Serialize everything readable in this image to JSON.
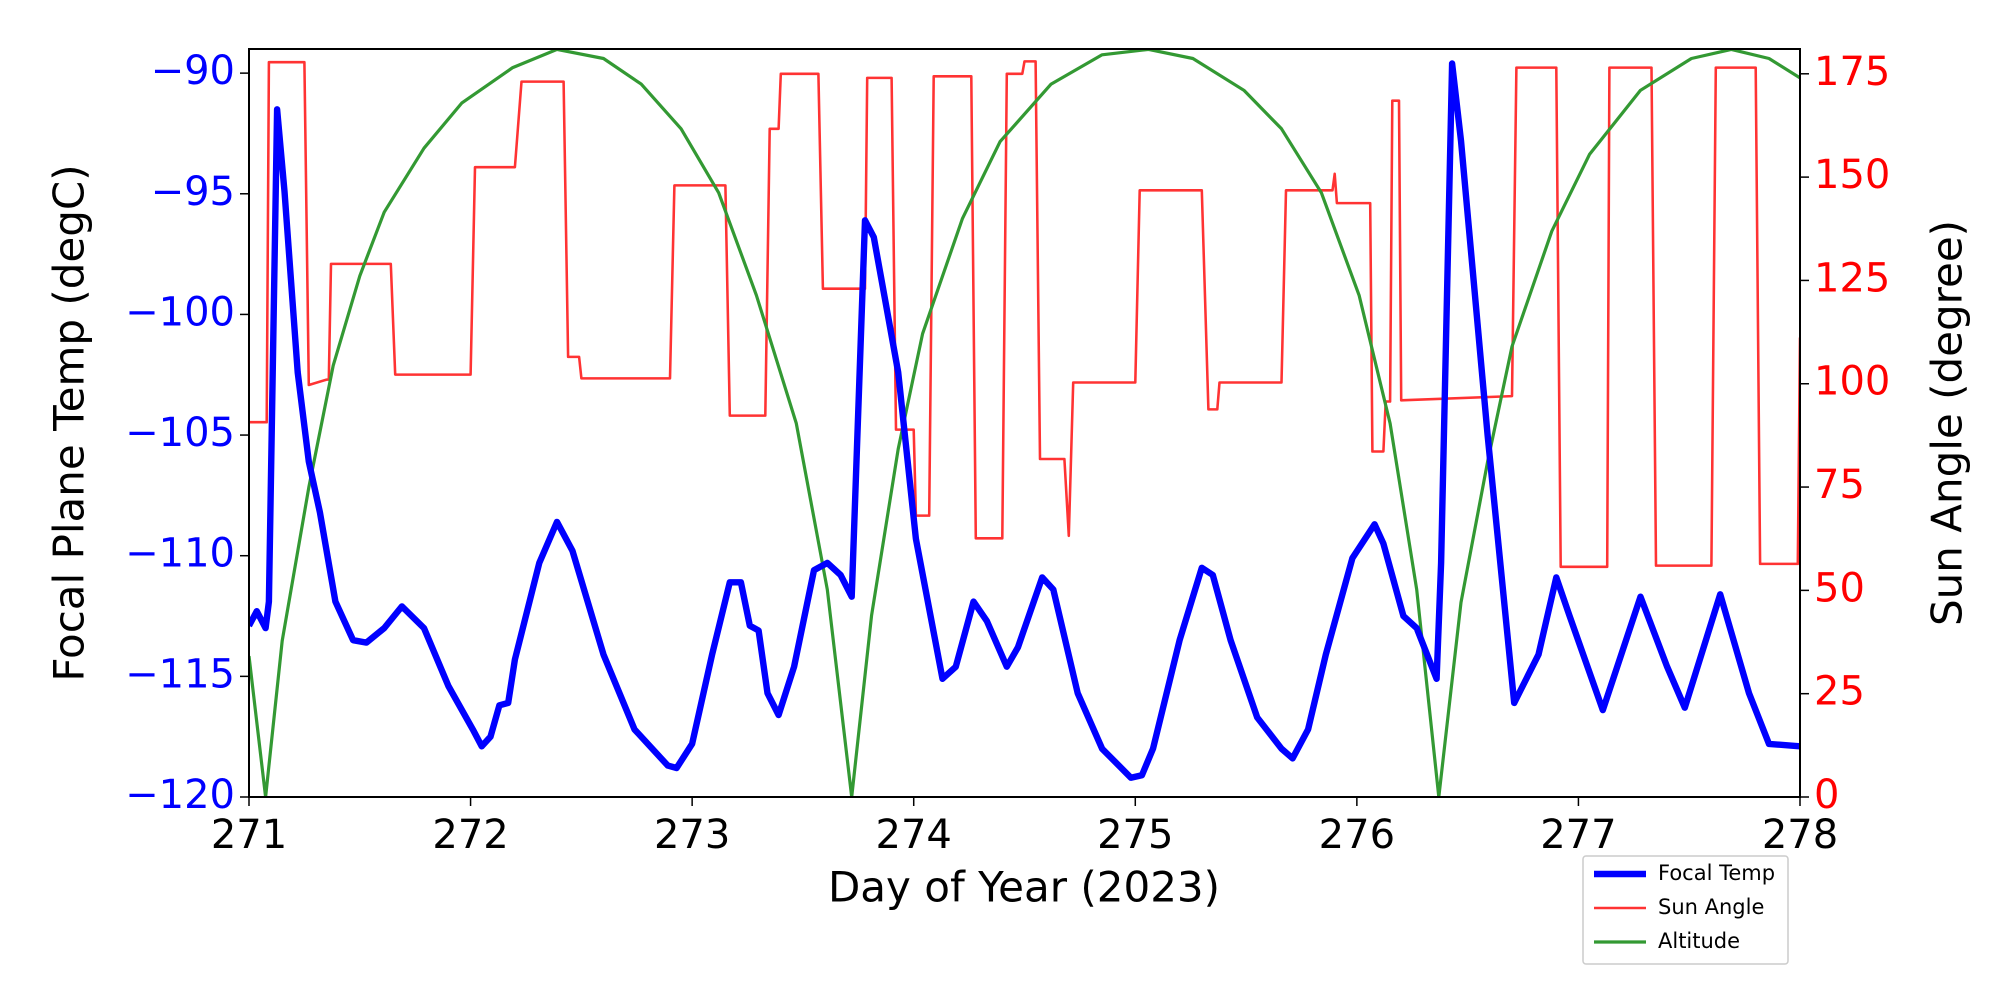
{
  "chart_data": {
    "type": "line",
    "xlabel": "Day of Year (2023)",
    "ylabel": "Focal Plane Temp (degC)",
    "y2label": "Sun Angle (degree)",
    "xlim": [
      271,
      278
    ],
    "xticks": [
      271,
      272,
      273,
      274,
      275,
      276,
      277,
      278
    ],
    "ylim": [
      -120,
      -89
    ],
    "yticks": [
      {
        "value": -120,
        "label": "−120"
      },
      {
        "value": -115,
        "label": "−115"
      },
      {
        "value": -110,
        "label": "−110"
      },
      {
        "value": -105,
        "label": "−105"
      },
      {
        "value": -100,
        "label": "−100"
      },
      {
        "value": -95,
        "label": "−95"
      },
      {
        "value": -90,
        "label": "−90"
      }
    ],
    "y2lim": [
      0,
      181
    ],
    "y2ticks": [
      0,
      25,
      50,
      75,
      100,
      125,
      150,
      175
    ],
    "y_tick_color": "#0000ff",
    "y2_tick_color": "#ff0000",
    "legend": "lower right",
    "series": [
      {
        "name": "Focal Temp",
        "color": "#0000ff",
        "line_width": 5,
        "axis": "y",
        "x": [
          271.0,
          271.035,
          271.075,
          271.09,
          271.127,
          271.16,
          271.22,
          271.27,
          271.32,
          271.39,
          271.47,
          271.53,
          271.61,
          271.69,
          271.79,
          271.9,
          272.01,
          272.05,
          272.09,
          272.13,
          272.17,
          272.2,
          272.31,
          272.39,
          272.46,
          272.6,
          272.74,
          272.89,
          272.93,
          273.0,
          273.09,
          273.17,
          273.22,
          273.26,
          273.3,
          273.34,
          273.39,
          273.46,
          273.55,
          273.61,
          273.67,
          273.72,
          273.78,
          273.82,
          273.93,
          274.01,
          274.13,
          274.19,
          274.27,
          274.33,
          274.42,
          274.47,
          274.58,
          274.63,
          274.74,
          274.85,
          274.98,
          275.03,
          275.08,
          275.2,
          275.3,
          275.35,
          275.43,
          275.55,
          275.66,
          275.71,
          275.78,
          275.86,
          275.98,
          276.08,
          276.12,
          276.21,
          276.27,
          276.36,
          276.38,
          276.43,
          276.47,
          276.59,
          276.71,
          276.82,
          276.9,
          276.96,
          277.11,
          277.28,
          277.4,
          277.48,
          277.64,
          277.77,
          277.86,
          278.0
        ],
        "values": [
          -112.9,
          -112.3,
          -113.0,
          -111.9,
          -91.5,
          -94.9,
          -102.4,
          -106.1,
          -108.2,
          -111.9,
          -113.5,
          -113.6,
          -113.0,
          -112.1,
          -113.0,
          -115.4,
          -117.2,
          -117.9,
          -117.5,
          -116.2,
          -116.1,
          -114.3,
          -110.3,
          -108.6,
          -109.8,
          -114.1,
          -117.2,
          -118.7,
          -118.8,
          -117.8,
          -114.1,
          -111.1,
          -111.1,
          -112.9,
          -113.1,
          -115.7,
          -116.6,
          -114.6,
          -110.6,
          -110.3,
          -110.8,
          -111.7,
          -96.1,
          -96.8,
          -102.4,
          -109.3,
          -115.1,
          -114.6,
          -111.9,
          -112.7,
          -114.6,
          -113.8,
          -110.9,
          -111.4,
          -115.7,
          -118.0,
          -119.2,
          -119.1,
          -118.0,
          -113.5,
          -110.5,
          -110.8,
          -113.5,
          -116.7,
          -118.0,
          -118.4,
          -117.2,
          -114.1,
          -110.1,
          -108.7,
          -109.5,
          -112.5,
          -113.0,
          -115.1,
          -110.3,
          -89.6,
          -92.8,
          -105.0,
          -116.1,
          -114.1,
          -110.9,
          -112.5,
          -116.4,
          -111.7,
          -114.6,
          -116.3,
          -111.6,
          -115.7,
          -117.8,
          -117.9
        ]
      },
      {
        "name": "Sun Angle",
        "color": "#ff3333",
        "line_width": 2,
        "axis": "y2",
        "x": [
          271.0,
          271.08,
          271.09,
          271.25,
          271.27,
          271.35,
          271.36,
          271.37,
          271.64,
          271.66,
          272.0,
          272.02,
          272.2,
          272.23,
          272.42,
          272.44,
          272.49,
          272.5,
          272.9,
          272.92,
          273.15,
          273.17,
          273.33,
          273.35,
          273.39,
          273.4,
          273.57,
          273.59,
          273.78,
          273.79,
          273.9,
          273.92,
          274.0,
          274.01,
          274.07,
          274.09,
          274.26,
          274.28,
          274.4,
          274.42,
          274.49,
          274.5,
          274.55,
          274.57,
          274.68,
          274.7,
          274.72,
          275.0,
          275.02,
          275.3,
          275.33,
          275.37,
          275.38,
          275.66,
          275.68,
          275.89,
          275.9,
          275.91,
          276.06,
          276.07,
          276.12,
          276.13,
          276.15,
          276.16,
          276.19,
          276.2,
          276.7,
          276.72,
          276.9,
          276.92,
          277.13,
          277.14,
          277.33,
          277.35,
          277.6,
          277.62,
          277.8,
          277.82,
          277.99,
          278.0
        ],
        "values": [
          90.7,
          90.7,
          177.8,
          177.8,
          99.7,
          101.0,
          101.0,
          129.0,
          129.0,
          102.2,
          102.2,
          152.4,
          152.4,
          173.1,
          173.1,
          106.5,
          106.5,
          101.3,
          101.3,
          148.0,
          148.0,
          92.3,
          92.3,
          161.7,
          161.7,
          175.0,
          175.0,
          123.0,
          123.0,
          174.0,
          174.0,
          88.9,
          88.9,
          68.1,
          68.1,
          174.4,
          174.4,
          62.6,
          62.6,
          175.0,
          175.0,
          178.0,
          178.0,
          81.8,
          81.8,
          63.2,
          100.3,
          100.3,
          146.8,
          146.8,
          93.8,
          93.8,
          100.3,
          100.3,
          146.8,
          146.8,
          150.8,
          143.7,
          143.7,
          83.6,
          83.6,
          95.7,
          95.7,
          168.5,
          168.5,
          96.0,
          97.0,
          176.5,
          176.5,
          55.7,
          55.7,
          176.5,
          176.5,
          56.0,
          56.0,
          176.5,
          176.5,
          56.4,
          56.4,
          111.2
        ]
      },
      {
        "name": "Altitude",
        "color": "#339933",
        "line_width": 2.5,
        "axis": "y2",
        "x": [
          271.0,
          271.075,
          271.15,
          271.27,
          271.38,
          271.5,
          271.61,
          271.79,
          271.96,
          272.19,
          272.39,
          272.6,
          272.77,
          272.95,
          273.12,
          273.29,
          273.47,
          273.61,
          273.72,
          273.81,
          273.93,
          274.04,
          274.22,
          274.39,
          274.62,
          274.85,
          275.06,
          275.26,
          275.49,
          275.66,
          275.84,
          276.01,
          276.15,
          276.27,
          276.37,
          276.47,
          276.59,
          276.7,
          276.88,
          277.05,
          277.28,
          277.51,
          277.69,
          277.86,
          278.0
        ],
        "values": [
          34.1,
          0,
          37.8,
          74.9,
          104.4,
          126.1,
          141.5,
          157.0,
          167.9,
          176.5,
          180.9,
          178.7,
          172.5,
          161.7,
          146.2,
          121.4,
          90.4,
          50.2,
          0,
          44.0,
          84.2,
          112.1,
          140.0,
          158.6,
          172.5,
          179.6,
          180.9,
          178.7,
          171.0,
          161.7,
          146.2,
          121.4,
          90.4,
          50.2,
          0,
          47.1,
          81.1,
          109.0,
          136.9,
          155.5,
          171.0,
          178.7,
          180.9,
          178.7,
          174.0
        ]
      }
    ]
  }
}
